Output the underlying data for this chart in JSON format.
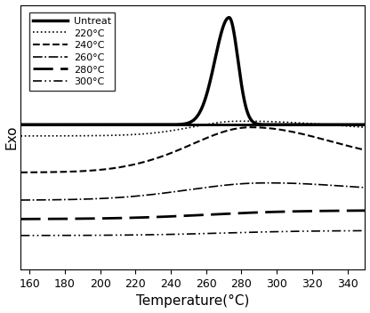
{
  "title": "",
  "xlabel": "Temperature(°C)",
  "ylabel": "Exo",
  "xlim": [
    155,
    350
  ],
  "ylim": [
    -1.05,
    1.05
  ],
  "xticks": [
    160,
    180,
    200,
    220,
    240,
    260,
    280,
    300,
    320,
    340
  ],
  "background_color": "#ffffff",
  "series": [
    {
      "label": "Untreat",
      "linestyle": "solid",
      "linewidth": 2.5,
      "color": "#000000",
      "type": "untreat"
    },
    {
      "label": "220°C",
      "linestyle": "dotted",
      "linewidth": 1.2,
      "color": "#000000",
      "type": "220"
    },
    {
      "label": "240°C",
      "linestyle": "dashed",
      "linewidth": 1.5,
      "color": "#000000",
      "type": "240"
    },
    {
      "label": "260°C",
      "linestyle": "dashdot",
      "linewidth": 1.2,
      "color": "#000000",
      "type": "260"
    },
    {
      "label": "280°C",
      "linestyle": "long_dash",
      "linewidth": 2.0,
      "color": "#000000",
      "type": "280"
    },
    {
      "label": "300°C",
      "linestyle": "long_dashdot",
      "linewidth": 1.2,
      "color": "#000000",
      "type": "300"
    }
  ],
  "legend_loc": "upper left",
  "legend_fontsize": 8,
  "axis_fontsize": 11,
  "tick_fontsize": 9
}
